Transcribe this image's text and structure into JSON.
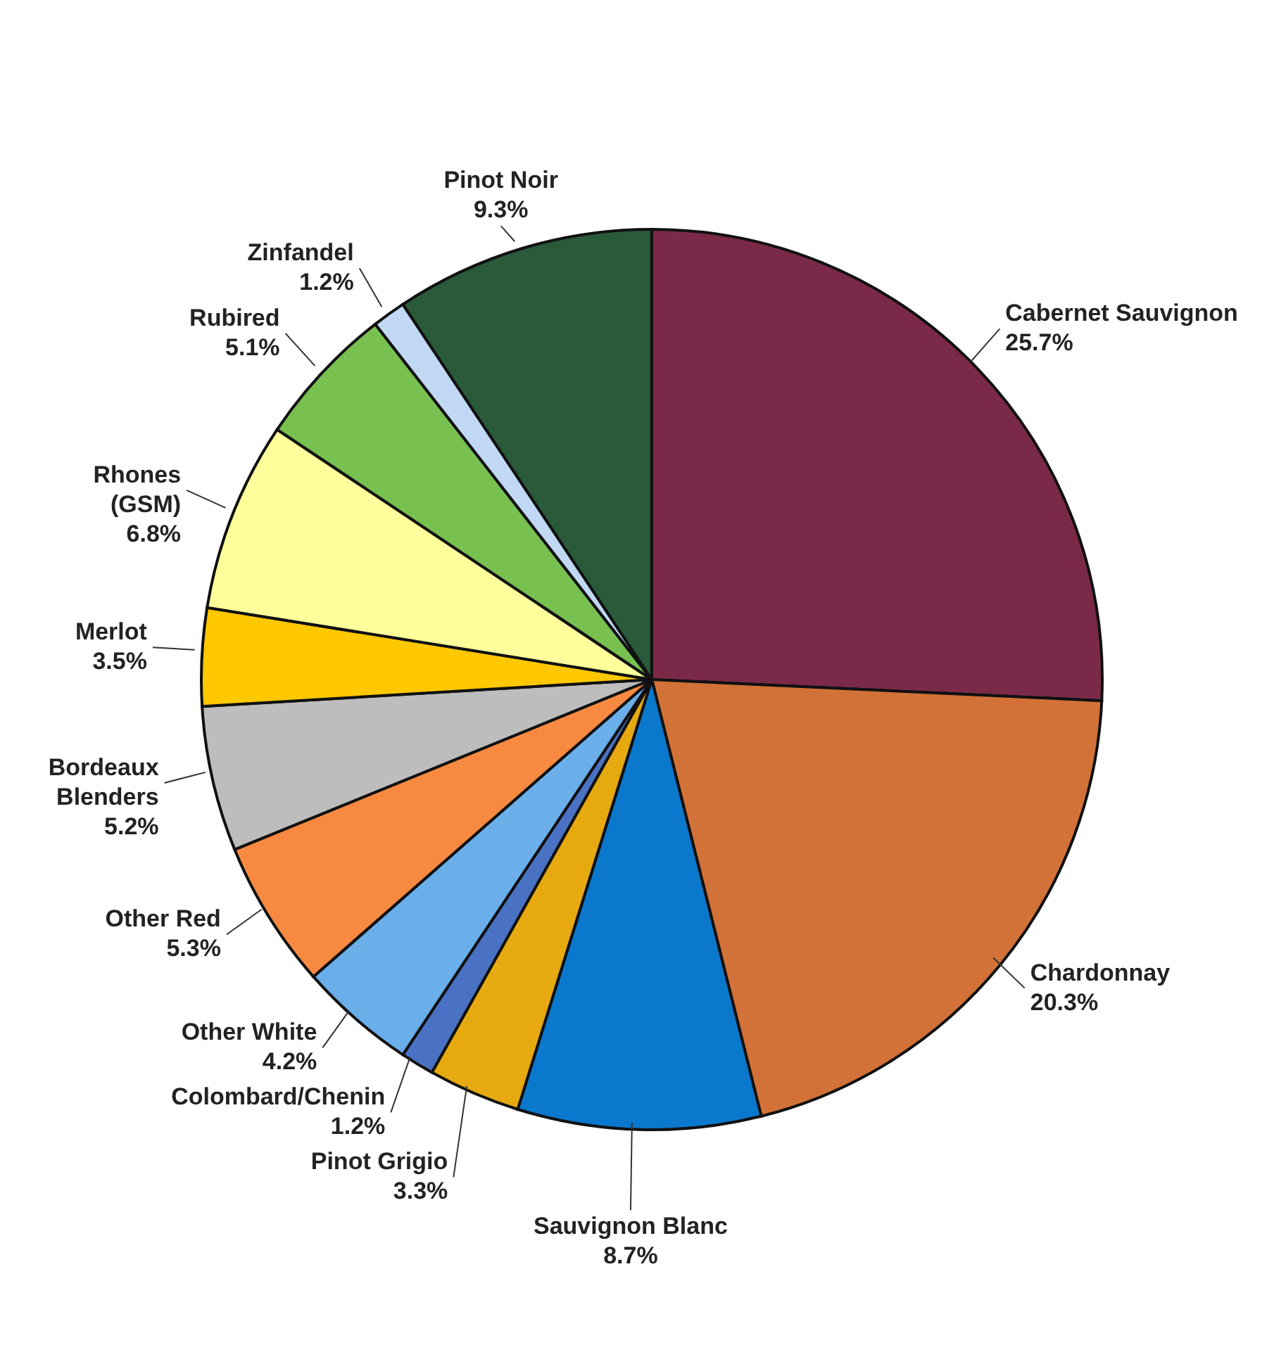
{
  "chart_data": {
    "type": "pie",
    "categories": [
      "Cabernet Sauvignon",
      "Chardonnay",
      "Sauvignon Blanc",
      "Pinot Grigio",
      "Colombard/Chenin",
      "Other White",
      "Other Red",
      "Bordeaux Blenders",
      "Merlot",
      "Rhones (GSM)",
      "Rubired",
      "Zinfandel",
      "Pinot Noir"
    ],
    "values": [
      25.7,
      20.3,
      8.7,
      3.3,
      1.2,
      4.2,
      5.3,
      5.2,
      3.5,
      6.8,
      5.1,
      1.2,
      9.3
    ],
    "value_labels": [
      "25.7%",
      "20.3%",
      "8.7%",
      "3.3%",
      "1.2%",
      "4.2%",
      "5.3%",
      "5.2%",
      "3.5%",
      "6.8%",
      "5.1%",
      "1.2%",
      "9.3%"
    ],
    "colors": [
      "#7a2a48",
      "#d27238",
      "#0a78cc",
      "#e6aa10",
      "#4a72c4",
      "#6aaeea",
      "#f78a40",
      "#bdbdbd",
      "#ffc800",
      "#fefe9a",
      "#78c050",
      "#c0d8f4",
      "#2a5a3a"
    ],
    "legend": false
  }
}
